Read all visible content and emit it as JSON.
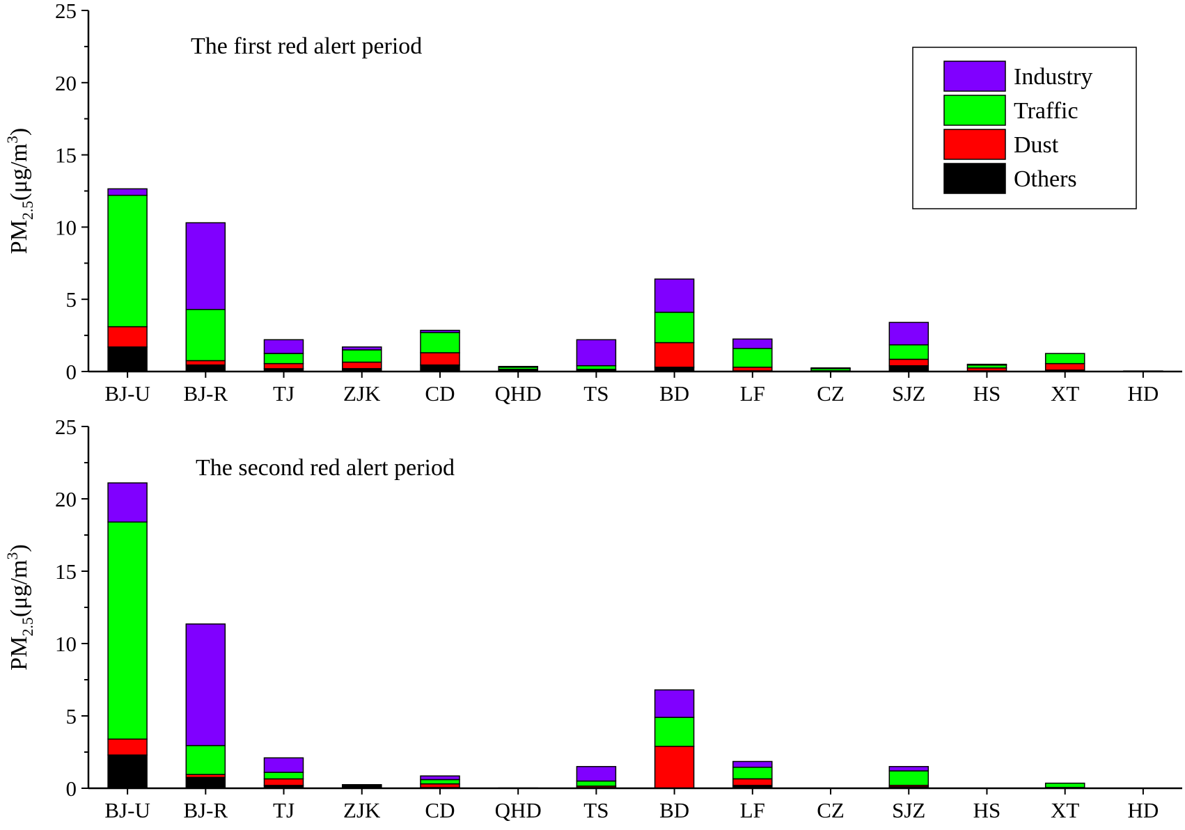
{
  "chart_data": [
    {
      "type": "bar",
      "stacked": true,
      "title": "The first red alert period",
      "ylabel": {
        "main": "PM",
        "sub": "2.5",
        "unit": "(μg/m",
        "sup": "3",
        "close": ")"
      },
      "ylim": [
        0,
        25
      ],
      "yticks": [
        "0",
        "5",
        "10",
        "15",
        "20",
        "25"
      ],
      "categories": [
        "BJ-U",
        "BJ-R",
        "TJ",
        "ZJK",
        "CD",
        "QHD",
        "TS",
        "BD",
        "LF",
        "CZ",
        "SJZ",
        "HS",
        "XT",
        "HD"
      ],
      "series": [
        {
          "name": "Others",
          "color": "#000000",
          "values": [
            1.7,
            0.45,
            0.2,
            0.2,
            0.45,
            0.1,
            0.1,
            0.3,
            0.05,
            0.0,
            0.4,
            0.05,
            0.1,
            0.0
          ]
        },
        {
          "name": "Dust",
          "color": "#ff0000",
          "values": [
            1.4,
            0.3,
            0.35,
            0.45,
            0.85,
            0.05,
            0.05,
            1.7,
            0.25,
            0.05,
            0.45,
            0.2,
            0.45,
            0.0
          ]
        },
        {
          "name": "Traffic",
          "color": "#00ff00",
          "values": [
            9.1,
            3.55,
            0.7,
            0.85,
            1.4,
            0.15,
            0.25,
            2.1,
            1.3,
            0.15,
            1.0,
            0.2,
            0.7,
            0.02
          ]
        },
        {
          "name": "Industry",
          "color": "#8000ff",
          "values": [
            0.45,
            6.0,
            0.95,
            0.2,
            0.15,
            0.05,
            1.8,
            2.3,
            0.65,
            0.05,
            1.55,
            0.05,
            0.0,
            0.02
          ]
        }
      ],
      "legend": {
        "position": "top-right",
        "order": [
          "Industry",
          "Traffic",
          "Dust",
          "Others"
        ]
      }
    },
    {
      "type": "bar",
      "stacked": true,
      "title": "The second red alert period",
      "ylabel": {
        "main": "PM",
        "sub": "2.5",
        "unit": "(μg/m",
        "sup": "3",
        "close": ")"
      },
      "ylim": [
        0,
        25
      ],
      "yticks": [
        "0",
        "5",
        "10",
        "15",
        "20",
        "25"
      ],
      "categories": [
        "BJ-U",
        "BJ-R",
        "TJ",
        "ZJK",
        "CD",
        "QHD",
        "TS",
        "BD",
        "LF",
        "CZ",
        "SJZ",
        "HS",
        "XT",
        "HD"
      ],
      "series": [
        {
          "name": "Others",
          "color": "#000000",
          "values": [
            2.3,
            0.75,
            0.2,
            0.1,
            0.05,
            0.02,
            0.05,
            0.0,
            0.2,
            0.0,
            0.1,
            0.0,
            0.0,
            0.0
          ]
        },
        {
          "name": "Dust",
          "color": "#ff0000",
          "values": [
            1.1,
            0.2,
            0.45,
            0.05,
            0.25,
            0.0,
            0.1,
            2.9,
            0.45,
            0.0,
            0.1,
            0.0,
            0.05,
            0.0
          ]
        },
        {
          "name": "Traffic",
          "color": "#00ff00",
          "values": [
            15.0,
            2.0,
            0.45,
            0.05,
            0.3,
            0.0,
            0.35,
            2.0,
            0.8,
            0.0,
            1.0,
            0.0,
            0.3,
            0.0
          ]
        },
        {
          "name": "Industry",
          "color": "#8000ff",
          "values": [
            2.7,
            8.4,
            1.0,
            0.05,
            0.25,
            0.0,
            1.0,
            1.9,
            0.4,
            0.0,
            0.3,
            0.0,
            0.0,
            0.0
          ]
        }
      ]
    }
  ]
}
